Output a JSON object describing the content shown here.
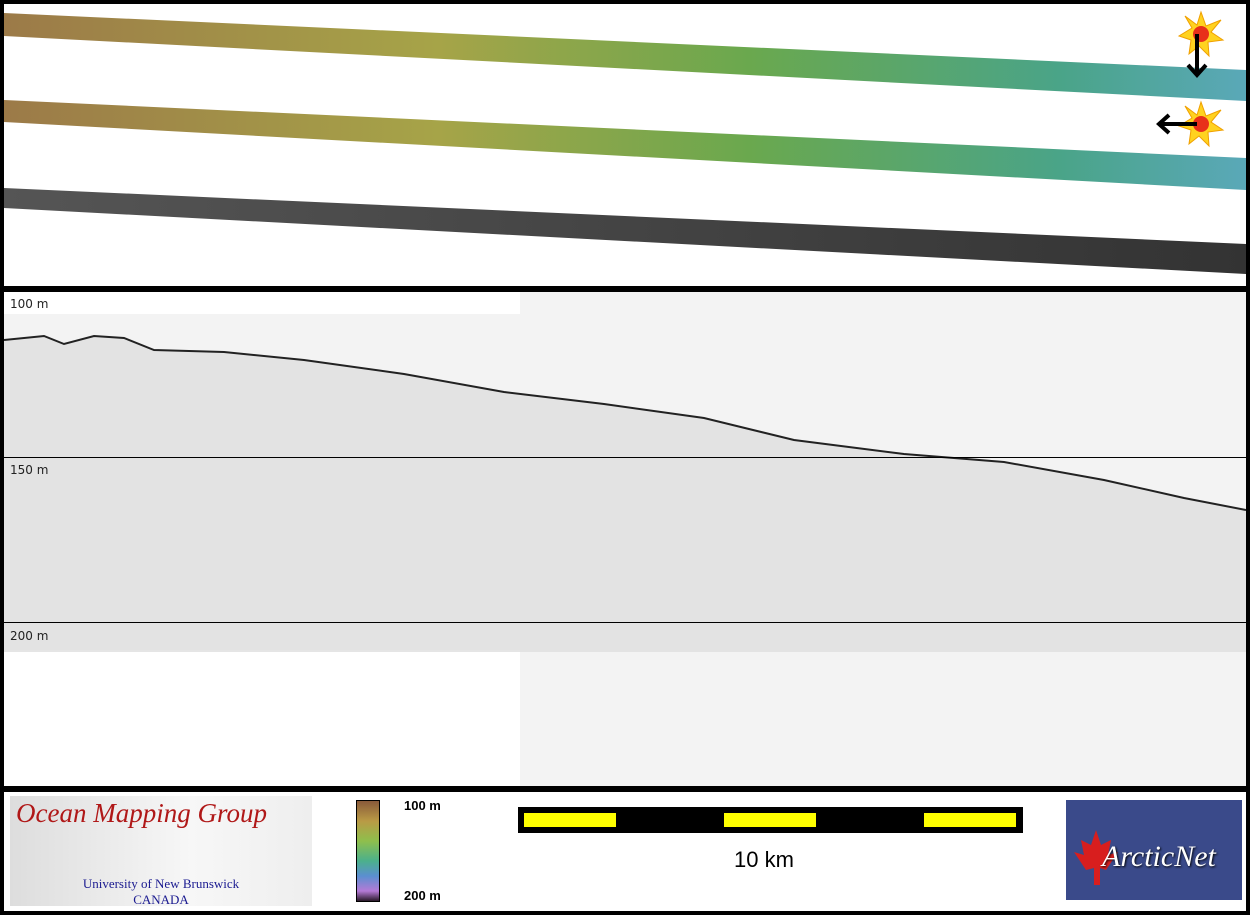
{
  "profile": {
    "depth_labels": [
      "100 m",
      "150 m",
      "200 m"
    ]
  },
  "footer": {
    "omg_logo": {
      "title": "Ocean Mapping Group",
      "university": "University of New Brunswick",
      "country": "CANADA"
    },
    "colorbar": {
      "top_label": "100 m",
      "bottom_label": "200 m"
    },
    "scale": {
      "label": "10 km",
      "bar_color": "#ffff00"
    },
    "partner_logo": {
      "text": "ArcticNet"
    }
  },
  "map": {
    "icons": [
      "sun-icon",
      "arrow-down-icon",
      "sun-icon",
      "arrow-left-icon"
    ]
  }
}
